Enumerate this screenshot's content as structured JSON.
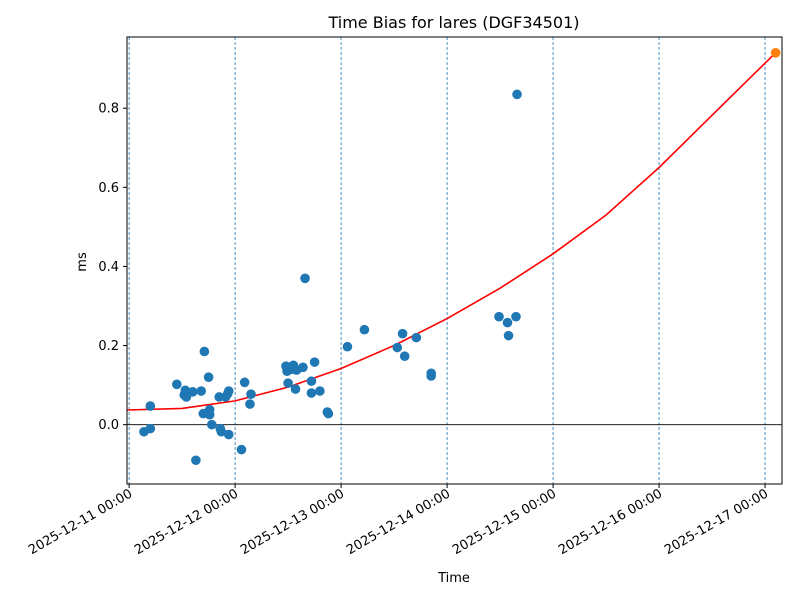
{
  "chart_data": {
    "type": "scatter",
    "title": "Time Bias for lares (DGF34501)",
    "xlabel": "Time",
    "ylabel": "ms",
    "x_range_days": [
      -0.02,
      6.16
    ],
    "ylim": [
      -0.15,
      0.98
    ],
    "x_ticks": [
      {
        "day": 0,
        "label": "2025-12-11 00:00"
      },
      {
        "day": 1,
        "label": "2025-12-12 00:00"
      },
      {
        "day": 2,
        "label": "2025-12-13 00:00"
      },
      {
        "day": 3,
        "label": "2025-12-14 00:00"
      },
      {
        "day": 4,
        "label": "2025-12-15 00:00"
      },
      {
        "day": 5,
        "label": "2025-12-16 00:00"
      },
      {
        "day": 6,
        "label": "2025-12-17 00:00"
      }
    ],
    "y_ticks": [
      {
        "value": 0.0,
        "label": "0.0"
      },
      {
        "value": 0.2,
        "label": "0.2"
      },
      {
        "value": 0.4,
        "label": "0.4"
      },
      {
        "value": 0.6,
        "label": "0.6"
      },
      {
        "value": 0.8,
        "label": "0.8"
      }
    ],
    "colors": {
      "points": "#1f77b4",
      "fit": "#ff0000",
      "forecast": "#ff7f0e",
      "grid": "#1f77b4",
      "zero_line": "#000000"
    },
    "points": [
      {
        "x": 0.14,
        "y": -0.018
      },
      {
        "x": 0.2,
        "y": -0.01
      },
      {
        "x": 0.2,
        "y": 0.047
      },
      {
        "x": 0.45,
        "y": 0.102
      },
      {
        "x": 0.52,
        "y": 0.075
      },
      {
        "x": 0.53,
        "y": 0.087
      },
      {
        "x": 0.54,
        "y": 0.07
      },
      {
        "x": 0.6,
        "y": 0.083
      },
      {
        "x": 0.63,
        "y": -0.09
      },
      {
        "x": 0.68,
        "y": 0.085
      },
      {
        "x": 0.71,
        "y": 0.185
      },
      {
        "x": 0.7,
        "y": 0.028
      },
      {
        "x": 0.76,
        "y": 0.038
      },
      {
        "x": 0.76,
        "y": 0.025
      },
      {
        "x": 0.75,
        "y": 0.12
      },
      {
        "x": 0.78,
        "y": 0.0
      },
      {
        "x": 0.85,
        "y": 0.07
      },
      {
        "x": 0.86,
        "y": -0.01
      },
      {
        "x": 0.87,
        "y": -0.018
      },
      {
        "x": 0.91,
        "y": 0.07
      },
      {
        "x": 0.93,
        "y": 0.078
      },
      {
        "x": 0.94,
        "y": 0.085
      },
      {
        "x": 0.94,
        "y": -0.025
      },
      {
        "x": 1.06,
        "y": -0.063
      },
      {
        "x": 1.09,
        "y": 0.107
      },
      {
        "x": 1.14,
        "y": 0.052
      },
      {
        "x": 1.15,
        "y": 0.077
      },
      {
        "x": 1.48,
        "y": 0.148
      },
      {
        "x": 1.49,
        "y": 0.135
      },
      {
        "x": 1.5,
        "y": 0.105
      },
      {
        "x": 1.54,
        "y": 0.14
      },
      {
        "x": 1.55,
        "y": 0.15
      },
      {
        "x": 1.57,
        "y": 0.09
      },
      {
        "x": 1.58,
        "y": 0.138
      },
      {
        "x": 1.64,
        "y": 0.145
      },
      {
        "x": 1.66,
        "y": 0.37
      },
      {
        "x": 1.72,
        "y": 0.08
      },
      {
        "x": 1.72,
        "y": 0.11
      },
      {
        "x": 1.75,
        "y": 0.158
      },
      {
        "x": 1.8,
        "y": 0.085
      },
      {
        "x": 1.87,
        "y": 0.032
      },
      {
        "x": 1.88,
        "y": 0.028
      },
      {
        "x": 2.06,
        "y": 0.197
      },
      {
        "x": 2.22,
        "y": 0.24
      },
      {
        "x": 2.53,
        "y": 0.195
      },
      {
        "x": 2.58,
        "y": 0.23
      },
      {
        "x": 2.6,
        "y": 0.173
      },
      {
        "x": 2.71,
        "y": 0.22
      },
      {
        "x": 2.85,
        "y": 0.13
      },
      {
        "x": 2.85,
        "y": 0.123
      },
      {
        "x": 3.49,
        "y": 0.273
      },
      {
        "x": 3.57,
        "y": 0.258
      },
      {
        "x": 3.58,
        "y": 0.225
      },
      {
        "x": 3.65,
        "y": 0.273
      },
      {
        "x": 3.66,
        "y": 0.835
      }
    ],
    "forecast_point": {
      "x": 6.1,
      "y": 0.94
    },
    "fit_curve": [
      {
        "x": -0.02,
        "y": 0.037
      },
      {
        "x": 0.5,
        "y": 0.041
      },
      {
        "x": 1.0,
        "y": 0.06
      },
      {
        "x": 1.5,
        "y": 0.095
      },
      {
        "x": 2.0,
        "y": 0.142
      },
      {
        "x": 2.5,
        "y": 0.2
      },
      {
        "x": 3.0,
        "y": 0.268
      },
      {
        "x": 3.5,
        "y": 0.345
      },
      {
        "x": 4.0,
        "y": 0.432
      },
      {
        "x": 4.5,
        "y": 0.53
      },
      {
        "x": 5.0,
        "y": 0.65
      },
      {
        "x": 5.5,
        "y": 0.782
      },
      {
        "x": 6.1,
        "y": 0.94
      }
    ]
  }
}
